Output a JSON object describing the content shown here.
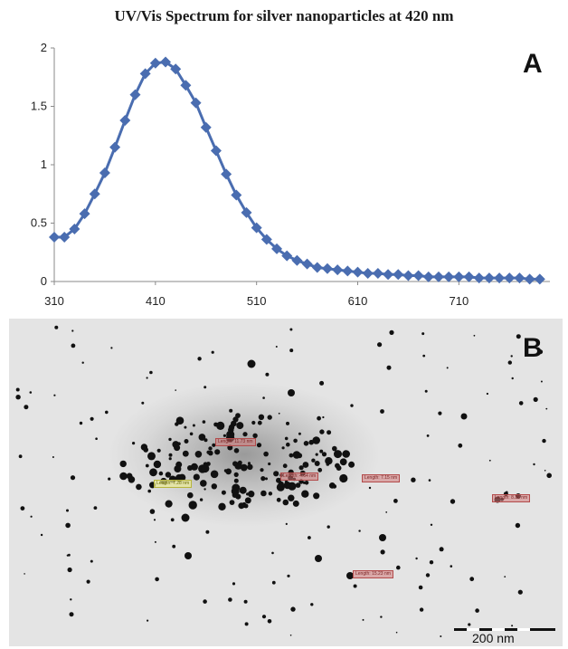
{
  "chart_data": {
    "type": "line",
    "title": "UV/Vis Spectrum for silver nanoparticles at 420 nm",
    "panel_label": "A",
    "x_ticks": [
      "310",
      "410",
      "510",
      "610",
      "710"
    ],
    "y_ticks": [
      "0",
      "0.5",
      "1",
      "1.5",
      "2"
    ],
    "xlim": [
      310,
      800
    ],
    "ylim": [
      0,
      2
    ],
    "marker": "diamond",
    "series": [
      {
        "color": "#4a6db0",
        "x": [
          310,
          320,
          330,
          340,
          350,
          360,
          370,
          380,
          390,
          400,
          410,
          420,
          430,
          440,
          450,
          460,
          470,
          480,
          490,
          500,
          510,
          520,
          530,
          540,
          550,
          560,
          570,
          580,
          590,
          600,
          610,
          620,
          630,
          640,
          650,
          660,
          670,
          680,
          690,
          700,
          710,
          720,
          730,
          740,
          750,
          760,
          770,
          780,
          790
        ],
        "y": [
          0.38,
          0.38,
          0.45,
          0.58,
          0.75,
          0.93,
          1.15,
          1.38,
          1.6,
          1.78,
          1.87,
          1.88,
          1.82,
          1.68,
          1.53,
          1.32,
          1.12,
          0.92,
          0.74,
          0.59,
          0.46,
          0.36,
          0.28,
          0.22,
          0.18,
          0.15,
          0.12,
          0.11,
          0.1,
          0.09,
          0.08,
          0.07,
          0.07,
          0.06,
          0.06,
          0.05,
          0.05,
          0.04,
          0.04,
          0.04,
          0.04,
          0.04,
          0.03,
          0.03,
          0.03,
          0.03,
          0.03,
          0.02,
          0.02
        ]
      }
    ]
  },
  "micrograph": {
    "panel_label": "B",
    "scale_bar_label": "200 nm",
    "measurements": [
      {
        "label": "Length: 11.73 nm",
        "style": "red"
      },
      {
        "label": "Length: 4.64 nm",
        "style": "red"
      },
      {
        "label": "Length: 7.15 nm",
        "style": "red"
      },
      {
        "label": "Length: 8.36 nm",
        "style": "red"
      },
      {
        "label": "Length: 15.23 nm",
        "style": "red"
      },
      {
        "label": "Length: 7.28 nm",
        "style": "yellow"
      }
    ]
  }
}
